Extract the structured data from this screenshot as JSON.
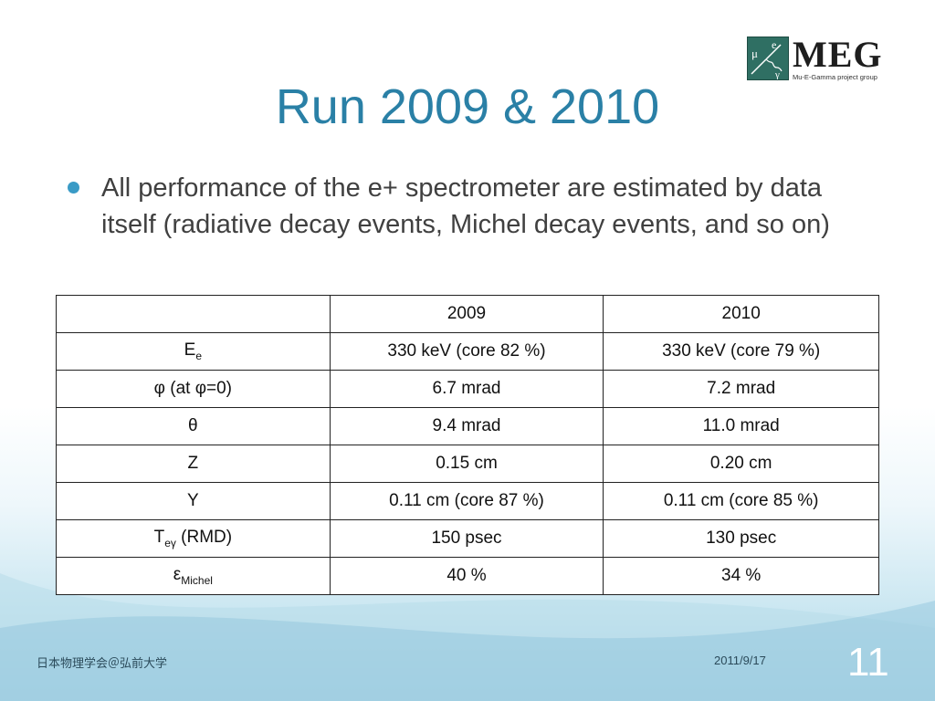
{
  "logo": {
    "name": "MEG",
    "subtitle": "Mu-E-Gamma project group",
    "mark_letters": [
      "μ",
      "e",
      "γ"
    ]
  },
  "title": "Run 2009 & 2010",
  "bullet": "All performance of the e+ spectrometer are estimated by data itself (radiative decay events, Michel decay events, and so on)",
  "table": {
    "header": [
      "",
      "2009",
      "2010"
    ],
    "rows": [
      {
        "label": "E",
        "label_sub": "e",
        "label_suffix": "",
        "v2009": "330 keV (core 82 %)",
        "v2010": "330 keV (core 79 %)"
      },
      {
        "label": "φ (at φ=0)",
        "label_sub": "",
        "label_suffix": "",
        "v2009": "6.7 mrad",
        "v2010": "7.2 mrad"
      },
      {
        "label": "θ",
        "label_sub": "",
        "label_suffix": "",
        "v2009": "9.4 mrad",
        "v2010": "11.0 mrad"
      },
      {
        "label": "Z",
        "label_sub": "",
        "label_suffix": "",
        "v2009": "0.15 cm",
        "v2010": "0.20 cm"
      },
      {
        "label": "Y",
        "label_sub": "",
        "label_suffix": "",
        "v2009": "0.11 cm (core 87 %)",
        "v2010": "0.11 cm (core 85 %)"
      },
      {
        "label": "T",
        "label_sub": "eγ",
        "label_suffix": " (RMD)",
        "v2009": "150 psec",
        "v2010": "130 psec"
      },
      {
        "label": "ε",
        "label_sub": "Michel",
        "label_suffix": "",
        "v2009": "40 %",
        "v2010": "34 %"
      }
    ]
  },
  "footer": {
    "left": "日本物理学会＠弘前大学",
    "date": "2011/9/17",
    "page": "11"
  },
  "colors": {
    "title": "#2a80a6",
    "bullet": "#3a9bc6",
    "logo_mark": "#2f6f63",
    "background_bottom": "#a9d4e6"
  }
}
